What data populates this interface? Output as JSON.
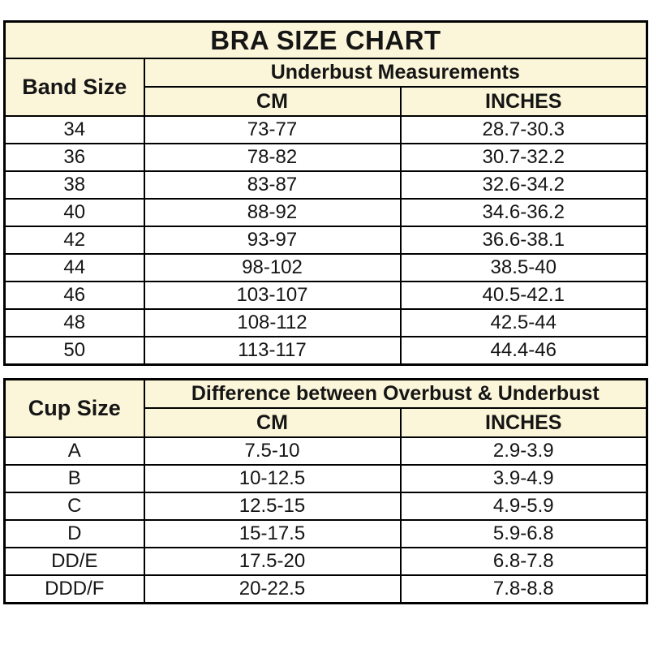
{
  "colors": {
    "header_background": "#FBF5D9",
    "border": "#000000",
    "text": "#151515",
    "page_background": "#ffffff"
  },
  "chart_data": [
    {
      "type": "table",
      "title": "BRA SIZE CHART",
      "corner_header": "Band Size",
      "group_header": "Underbust Measurements",
      "columns": [
        "CM",
        "INCHES"
      ],
      "rows": [
        [
          "34",
          "73-77",
          "28.7-30.3"
        ],
        [
          "36",
          "78-82",
          "30.7-32.2"
        ],
        [
          "38",
          "83-87",
          "32.6-34.2"
        ],
        [
          "40",
          "88-92",
          "34.6-36.2"
        ],
        [
          "42",
          "93-97",
          "36.6-38.1"
        ],
        [
          "44",
          "98-102",
          "38.5-40"
        ],
        [
          "46",
          "103-107",
          "40.5-42.1"
        ],
        [
          "48",
          "108-112",
          "42.5-44"
        ],
        [
          "50",
          "113-117",
          "44.4-46"
        ]
      ]
    },
    {
      "type": "table",
      "title": "",
      "corner_header": "Cup Size",
      "group_header": "Difference between Overbust & Underbust",
      "columns": [
        "CM",
        "INCHES"
      ],
      "rows": [
        [
          "A",
          "7.5-10",
          "2.9-3.9"
        ],
        [
          "B",
          "10-12.5",
          "3.9-4.9"
        ],
        [
          "C",
          "12.5-15",
          "4.9-5.9"
        ],
        [
          "D",
          "15-17.5",
          "5.9-6.8"
        ],
        [
          "DD/E",
          "17.5-20",
          "6.8-7.8"
        ],
        [
          "DDD/F",
          "20-22.5",
          "7.8-8.8"
        ]
      ]
    }
  ]
}
